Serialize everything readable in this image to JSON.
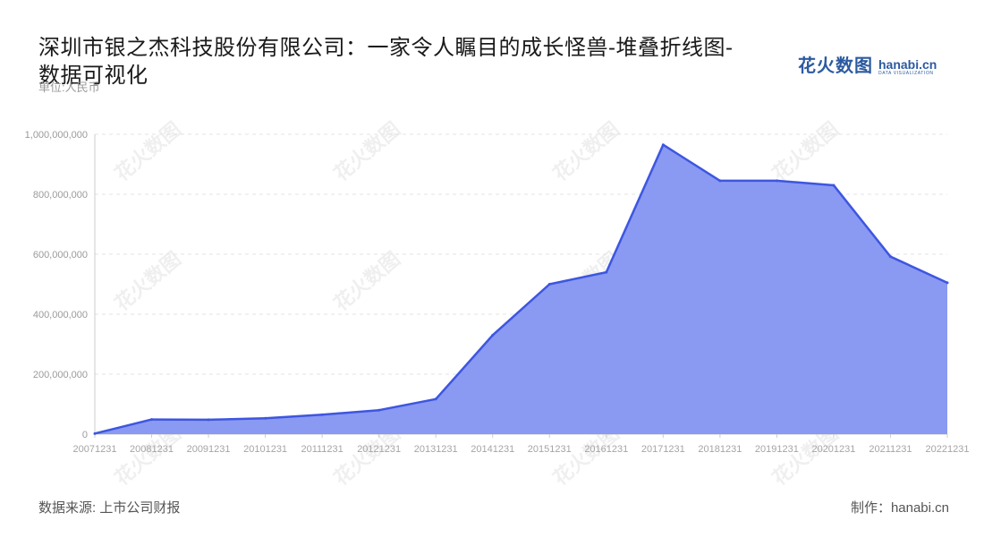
{
  "header": {
    "title": "深圳市银之杰科技股份有限公司：一家令人瞩目的成长怪兽-堆叠折线图-数据可视化",
    "unit": "单位:人民币"
  },
  "logo": {
    "cn": "花火数图",
    "en": "hanabi.cn",
    "en_sub": "DATA VISUALIZATION"
  },
  "footer": {
    "source": "数据来源: 上市公司财报",
    "credit": "制作：hanabi.cn"
  },
  "colors": {
    "area_fill": "#8a99f2",
    "line": "#3d56e0",
    "grid": "#e3e3e3",
    "axis": "#cccccc"
  },
  "chart_data": {
    "type": "area",
    "categories": [
      "20071231",
      "20081231",
      "20091231",
      "20101231",
      "20111231",
      "20121231",
      "20131231",
      "20141231",
      "20151231",
      "20161231",
      "20171231",
      "20181231",
      "20191231",
      "20201231",
      "20211231",
      "20221231"
    ],
    "series": [
      {
        "values": [
          2000000,
          49000000,
          48000000,
          53000000,
          65000000,
          80000000,
          117000000,
          330000000,
          500000000,
          540000000,
          965000000,
          845000000,
          845000000,
          830000000,
          592000000,
          505000000
        ]
      }
    ],
    "yticks": [
      "0",
      "200,000,000",
      "400,000,000",
      "600,000,000",
      "800,000,000",
      "1,000,000,000"
    ],
    "ylim": [
      0,
      1000000000
    ],
    "grid": true,
    "legend": "none"
  }
}
